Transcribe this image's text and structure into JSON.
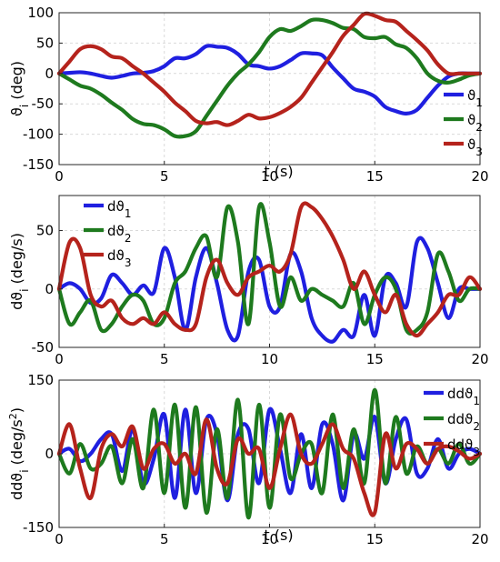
{
  "chart_data": [
    {
      "type": "line",
      "ylabel": "ϑ_i (deg)",
      "xlabel": "t (s)",
      "xlim": [
        0,
        20
      ],
      "ylim": [
        -150,
        100
      ],
      "xticks": [
        0,
        5,
        10,
        15,
        20
      ],
      "yticks": [
        -150,
        -100,
        -50,
        0,
        50,
        100
      ],
      "grid": true,
      "legend_position": "right",
      "series": [
        {
          "name": "ϑ_1",
          "color": "#1f1fe0",
          "x": [
            0,
            0.5,
            1,
            1.5,
            2,
            2.5,
            3,
            3.5,
            4,
            4.5,
            5,
            5.5,
            6,
            6.5,
            7,
            7.5,
            8,
            8.5,
            9,
            9.5,
            10,
            10.5,
            11,
            11.5,
            12,
            12.5,
            13,
            13.5,
            14,
            14.5,
            15,
            15.5,
            16,
            16.5,
            17,
            17.5,
            18,
            18.5,
            19,
            19.5,
            20
          ],
          "values": [
            0,
            1,
            2,
            0,
            -4,
            -7,
            -4,
            0,
            1,
            4,
            12,
            25,
            25,
            32,
            45,
            44,
            42,
            32,
            15,
            12,
            8,
            12,
            22,
            33,
            33,
            30,
            10,
            -8,
            -25,
            -30,
            -38,
            -55,
            -62,
            -66,
            -60,
            -40,
            -20,
            -5,
            0,
            0,
            0
          ]
        },
        {
          "name": "ϑ_2",
          "color": "#1e7a1e",
          "x": [
            0,
            0.5,
            1,
            1.5,
            2,
            2.5,
            3,
            3.5,
            4,
            4.5,
            5,
            5.5,
            6,
            6.5,
            7,
            7.5,
            8,
            8.5,
            9,
            9.5,
            10,
            10.5,
            11,
            11.5,
            12,
            12.5,
            13,
            13.5,
            14,
            14.5,
            15,
            15.5,
            16,
            16.5,
            17,
            17.5,
            18,
            18.5,
            19,
            19.5,
            20
          ],
          "values": [
            0,
            -10,
            -20,
            -25,
            -35,
            -48,
            -60,
            -75,
            -83,
            -85,
            -92,
            -103,
            -103,
            -95,
            -70,
            -45,
            -20,
            0,
            15,
            35,
            60,
            73,
            70,
            78,
            88,
            88,
            83,
            75,
            73,
            60,
            58,
            60,
            48,
            42,
            25,
            0,
            -12,
            -15,
            -10,
            -3,
            0
          ]
        },
        {
          "name": "ϑ_3",
          "color": "#b5231c",
          "x": [
            0,
            0.5,
            1,
            1.5,
            2,
            2.5,
            3,
            3.5,
            4,
            4.5,
            5,
            5.5,
            6,
            6.5,
            7,
            7.5,
            8,
            8.5,
            9,
            9.5,
            10,
            10.5,
            11,
            11.5,
            12,
            12.5,
            13,
            13.5,
            14,
            14.5,
            15,
            15.5,
            16,
            16.5,
            17,
            17.5,
            18,
            18.5,
            19,
            19.5,
            20
          ],
          "values": [
            0,
            20,
            40,
            45,
            40,
            28,
            25,
            12,
            0,
            -15,
            -30,
            -48,
            -62,
            -78,
            -82,
            -80,
            -85,
            -78,
            -68,
            -74,
            -72,
            -65,
            -55,
            -40,
            -15,
            10,
            35,
            62,
            80,
            98,
            95,
            88,
            85,
            70,
            55,
            38,
            15,
            0,
            0,
            0,
            0
          ]
        }
      ]
    },
    {
      "type": "line",
      "ylabel": "dϑ_i (deg/s)",
      "xlabel": "",
      "xlim": [
        0,
        20
      ],
      "ylim": [
        -50,
        80
      ],
      "xticks": [
        0,
        5,
        10,
        15,
        20
      ],
      "yticks": [
        -50,
        0,
        50
      ],
      "grid": true,
      "legend_position": "top-left",
      "series": [
        {
          "name": "dϑ_1",
          "color": "#1f1fe0",
          "x": [
            0,
            0.5,
            1,
            1.5,
            2,
            2.5,
            3,
            3.5,
            4,
            4.5,
            5,
            5.5,
            6,
            6.5,
            7,
            7.5,
            8,
            8.5,
            9,
            9.5,
            10,
            10.5,
            11,
            11.5,
            12,
            12.5,
            13,
            13.5,
            14,
            14.5,
            15,
            15.5,
            16,
            16.5,
            17,
            17.5,
            18,
            18.5,
            19,
            19.5,
            20
          ],
          "values": [
            0,
            5,
            0,
            -12,
            -8,
            12,
            5,
            -5,
            3,
            -3,
            35,
            10,
            -35,
            10,
            35,
            5,
            -35,
            -40,
            15,
            25,
            -15,
            -15,
            30,
            15,
            -25,
            -40,
            -45,
            -35,
            -40,
            -5,
            -40,
            10,
            5,
            -15,
            40,
            35,
            5,
            -25,
            0,
            0,
            0
          ]
        },
        {
          "name": "dϑ_2",
          "color": "#1e7a1e",
          "x": [
            0,
            0.5,
            1,
            1.5,
            2,
            2.5,
            3,
            3.5,
            4,
            4.5,
            5,
            5.5,
            6,
            6.5,
            7,
            7.5,
            8,
            8.5,
            9,
            9.5,
            10,
            10.5,
            11,
            11.5,
            12,
            12.5,
            13,
            13.5,
            14,
            14.5,
            15,
            15.5,
            16,
            16.5,
            17,
            17.5,
            18,
            18.5,
            19,
            19.5,
            20
          ],
          "values": [
            0,
            -30,
            -20,
            -10,
            -35,
            -30,
            -15,
            -5,
            -10,
            -30,
            -25,
            5,
            15,
            35,
            45,
            10,
            70,
            40,
            -30,
            70,
            40,
            -15,
            10,
            -10,
            0,
            -5,
            -10,
            -15,
            5,
            -30,
            -5,
            10,
            0,
            -35,
            -35,
            -20,
            30,
            15,
            -10,
            0,
            0
          ]
        },
        {
          "name": "dϑ_3",
          "color": "#b5231c",
          "x": [
            0,
            0.5,
            1,
            1.5,
            2,
            2.5,
            3,
            3.5,
            4,
            4.5,
            5,
            5.5,
            6,
            6.5,
            7,
            7.5,
            8,
            8.5,
            9,
            9.5,
            10,
            10.5,
            11,
            11.5,
            12,
            12.5,
            13,
            13.5,
            14,
            14.5,
            15,
            15.5,
            16,
            16.5,
            17,
            17.5,
            18,
            18.5,
            19,
            19.5,
            20
          ],
          "values": [
            0,
            40,
            35,
            -5,
            -15,
            -10,
            -25,
            -30,
            -25,
            -30,
            -20,
            -30,
            -35,
            -30,
            10,
            25,
            5,
            -5,
            10,
            15,
            20,
            15,
            30,
            70,
            70,
            60,
            45,
            25,
            0,
            15,
            -5,
            -20,
            -5,
            -30,
            -40,
            -30,
            -20,
            -5,
            -5,
            10,
            0
          ]
        }
      ]
    },
    {
      "type": "line",
      "ylabel": "ddϑ_i (deg/s^2)",
      "xlabel": "t (s)",
      "xlim": [
        0,
        20
      ],
      "ylim": [
        -150,
        150
      ],
      "xticks": [
        0,
        5,
        10,
        15,
        20
      ],
      "yticks": [
        -150,
        0,
        150
      ],
      "grid": true,
      "legend_position": "top-right",
      "series": [
        {
          "name": "ddϑ_1",
          "color": "#1f1fe0",
          "x": [
            0,
            0.5,
            1,
            1.5,
            2,
            2.5,
            3,
            3.5,
            4,
            4.5,
            5,
            5.5,
            6,
            6.5,
            7,
            7.5,
            8,
            8.5,
            9,
            9.5,
            10,
            10.5,
            11,
            11.5,
            12,
            12.5,
            13,
            13.5,
            14,
            14.5,
            15,
            15.5,
            16,
            16.5,
            17,
            17.5,
            18,
            18.5,
            19,
            19.5,
            20
          ],
          "values": [
            0,
            10,
            -15,
            0,
            30,
            40,
            -35,
            50,
            -60,
            -10,
            80,
            -90,
            90,
            -80,
            70,
            40,
            -95,
            40,
            50,
            -60,
            90,
            10,
            -80,
            40,
            -70,
            60,
            20,
            -95,
            40,
            -10,
            75,
            -60,
            30,
            70,
            -40,
            -30,
            30,
            -30,
            0,
            10,
            0
          ]
        },
        {
          "name": "ddϑ_2",
          "color": "#1e7a1e",
          "x": [
            0,
            0.5,
            1,
            1.5,
            2,
            2.5,
            3,
            3.5,
            4,
            4.5,
            5,
            5.5,
            6,
            6.5,
            7,
            7.5,
            8,
            8.5,
            9,
            9.5,
            10,
            10.5,
            11,
            11.5,
            12,
            12.5,
            13,
            13.5,
            14,
            14.5,
            15,
            15.5,
            16,
            16.5,
            17,
            17.5,
            18,
            18.5,
            19,
            19.5,
            20
          ],
          "values": [
            0,
            -40,
            20,
            -30,
            -20,
            15,
            -60,
            30,
            -70,
            90,
            -80,
            100,
            -110,
            95,
            -120,
            50,
            -90,
            110,
            -130,
            100,
            -110,
            80,
            -50,
            0,
            20,
            -80,
            80,
            -70,
            50,
            -60,
            130,
            -60,
            75,
            -40,
            15,
            -20,
            10,
            -20,
            20,
            -20,
            0
          ]
        },
        {
          "name": "ddϑ_3",
          "color": "#b5231c",
          "x": [
            0,
            0.5,
            1,
            1.5,
            2,
            2.5,
            3,
            3.5,
            4,
            4.5,
            5,
            5.5,
            6,
            6.5,
            7,
            7.5,
            8,
            8.5,
            9,
            9.5,
            10,
            10.5,
            11,
            11.5,
            12,
            12.5,
            13,
            13.5,
            14,
            14.5,
            15,
            15.5,
            16,
            16.5,
            17,
            17.5,
            18,
            18.5,
            19,
            19.5,
            20
          ],
          "values": [
            0,
            60,
            -30,
            -90,
            10,
            40,
            15,
            55,
            -30,
            10,
            20,
            -20,
            0,
            -40,
            70,
            -30,
            -60,
            30,
            0,
            10,
            -70,
            10,
            80,
            0,
            -20,
            20,
            60,
            10,
            -10,
            -80,
            -120,
            40,
            -30,
            20,
            10,
            -20,
            10,
            15,
            5,
            -10,
            0
          ]
        }
      ]
    }
  ]
}
